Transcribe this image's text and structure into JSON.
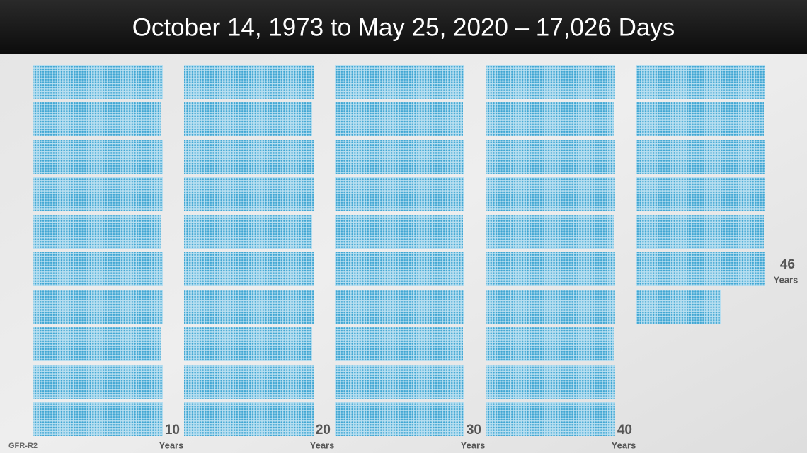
{
  "header": {
    "title": "October 14, 1973 to May 25, 2020 – 17,026 Days"
  },
  "labels": [
    {
      "number": 10,
      "unit": "Years"
    },
    {
      "number": 20,
      "unit": "Years"
    },
    {
      "number": 30,
      "unit": "Years"
    },
    {
      "number": 40,
      "unit": "Years"
    },
    {
      "number": 46,
      "unit": "Years"
    }
  ],
  "footer": "GFR-R2"
}
